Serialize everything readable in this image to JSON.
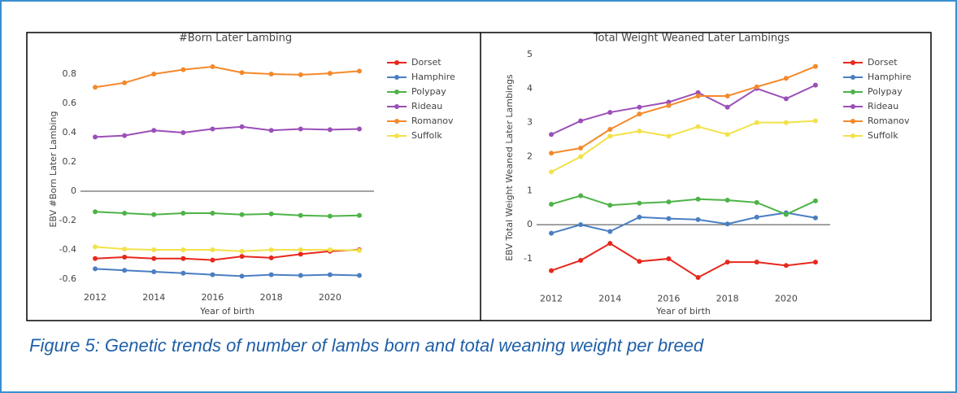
{
  "chart_data": [
    {
      "type": "line",
      "title": "#Born Later Lambing",
      "xlabel": "Year of birth",
      "ylabel": "EBV #Born Later Lambing",
      "x": [
        2012,
        2013,
        2014,
        2015,
        2016,
        2017,
        2018,
        2019,
        2020,
        2021
      ],
      "xlim": [
        2011.5,
        2021.5
      ],
      "xticks": [
        2012,
        2014,
        2016,
        2018,
        2020
      ],
      "ylim": [
        -0.65,
        0.95
      ],
      "yticks": [
        -0.6,
        -0.4,
        -0.2,
        0,
        0.2,
        0.4,
        0.6,
        0.8
      ],
      "grid": false,
      "zeroline": true,
      "legend": "right",
      "series": [
        {
          "name": "Dorset",
          "color": "#e8271d",
          "values": [
            -0.46,
            -0.45,
            -0.46,
            -0.46,
            -0.47,
            -0.445,
            -0.455,
            -0.43,
            -0.41,
            -0.4
          ]
        },
        {
          "name": "Hamphire",
          "color": "#4a7ec2",
          "values": [
            -0.53,
            -0.54,
            -0.55,
            -0.56,
            -0.57,
            -0.58,
            -0.57,
            -0.575,
            -0.57,
            -0.575
          ]
        },
        {
          "name": "Polypay",
          "color": "#4db347",
          "values": [
            -0.14,
            -0.15,
            -0.16,
            -0.15,
            -0.15,
            -0.16,
            -0.155,
            -0.165,
            -0.17,
            -0.165
          ]
        },
        {
          "name": "Rideau",
          "color": "#9b4fb8",
          "values": [
            0.37,
            0.38,
            0.415,
            0.4,
            0.425,
            0.44,
            0.415,
            0.425,
            0.42,
            0.425
          ]
        },
        {
          "name": "Romanov",
          "color": "#f5892b",
          "values": [
            0.71,
            0.74,
            0.8,
            0.83,
            0.85,
            0.81,
            0.8,
            0.795,
            0.805,
            0.82
          ]
        },
        {
          "name": "Suffolk",
          "color": "#f2e24a",
          "values": [
            -0.38,
            -0.395,
            -0.4,
            -0.4,
            -0.4,
            -0.41,
            -0.4,
            -0.4,
            -0.4,
            -0.405
          ]
        }
      ]
    },
    {
      "type": "line",
      "title": "Total Weight Weaned Later Lambings",
      "xlabel": "Year of birth",
      "ylabel": "EBV Total Weight Weaned Later Lambings",
      "x": [
        2012,
        2013,
        2014,
        2015,
        2016,
        2017,
        2018,
        2019,
        2020,
        2021
      ],
      "xlim": [
        2011.5,
        2021.5
      ],
      "xticks": [
        2012,
        2014,
        2016,
        2018,
        2020
      ],
      "ylim": [
        -1.85,
        5.2
      ],
      "yticks": [
        -1,
        0,
        1,
        2,
        3,
        4,
        5
      ],
      "grid": false,
      "zeroline": true,
      "legend": "right",
      "series": [
        {
          "name": "Dorset",
          "color": "#e8271d",
          "values": [
            -1.35,
            -1.05,
            -0.55,
            -1.08,
            -1.0,
            -1.55,
            -1.1,
            -1.1,
            -1.2,
            -1.1
          ]
        },
        {
          "name": "Hamphire",
          "color": "#4a7ec2",
          "values": [
            -0.25,
            0,
            -0.2,
            0.22,
            0.18,
            0.15,
            0.02,
            0.22,
            0.35,
            0.2
          ]
        },
        {
          "name": "Polypay",
          "color": "#4db347",
          "values": [
            0.6,
            0.85,
            0.57,
            0.63,
            0.67,
            0.75,
            0.72,
            0.65,
            0.3,
            0.7
          ]
        },
        {
          "name": "Rideau",
          "color": "#9b4fb8",
          "values": [
            2.65,
            3.05,
            3.3,
            3.45,
            3.6,
            3.88,
            3.45,
            4.0,
            3.7,
            4.1
          ]
        },
        {
          "name": "Romanov",
          "color": "#f5892b",
          "values": [
            2.1,
            2.25,
            2.8,
            3.25,
            3.5,
            3.78,
            3.78,
            4.05,
            4.3,
            4.65
          ]
        },
        {
          "name": "Suffolk",
          "color": "#f2e24a",
          "values": [
            1.55,
            2.0,
            2.6,
            2.75,
            2.6,
            2.88,
            2.65,
            3.0,
            3.0,
            3.05
          ]
        }
      ]
    }
  ],
  "caption": "Figure 5: Genetic trends of number of lambs born and total weaning weight per breed"
}
